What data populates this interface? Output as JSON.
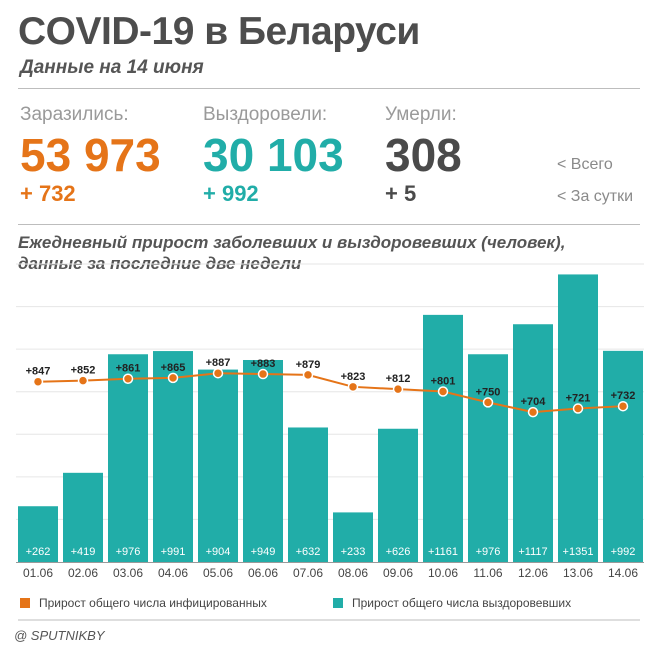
{
  "header": {
    "title": "COVID-19 в Беларуси",
    "subtitle": "Данные на 14 июня"
  },
  "stats": [
    {
      "label": "Заразились:",
      "total": "53 973",
      "delta": "+ 732",
      "color": "#e57418"
    },
    {
      "label": "Выздоровели:",
      "total": "30 103",
      "delta": "+ 992",
      "color": "#21ada8"
    },
    {
      "label": "Умерли:",
      "total": "308",
      "delta": "+ 5",
      "color": "#4a4a4a"
    }
  ],
  "side_legend": {
    "total": "<  Всего",
    "daily": "<  За сутки"
  },
  "chart_title": {
    "line1": "Ежедневный прирост заболевших и выздоровевших (человек),",
    "line2": "данные за последние две недели"
  },
  "chart_data": {
    "type": "bar",
    "categories": [
      "01.06",
      "02.06",
      "03.06",
      "04.06",
      "05.06",
      "06.06",
      "07.06",
      "08.06",
      "09.06",
      "10.06",
      "11.06",
      "12.06",
      "13.06",
      "14.06"
    ],
    "series": [
      {
        "name": "Прирост общего числа выздоровевших",
        "type": "bar",
        "color": "#21ada8",
        "values": [
          262,
          419,
          976,
          991,
          904,
          949,
          632,
          233,
          626,
          1161,
          976,
          1117,
          1351,
          992
        ],
        "labels": [
          "+262",
          "+419",
          "+976",
          "+991",
          "+904",
          "+949",
          "+632",
          "+233",
          "+626",
          "+1161",
          "+976",
          "+1117",
          "+1351",
          "+992"
        ]
      },
      {
        "name": "Прирост общего числа инфицированных",
        "type": "line",
        "color": "#e57418",
        "values": [
          847,
          852,
          861,
          865,
          887,
          883,
          879,
          823,
          812,
          801,
          750,
          704,
          721,
          732
        ],
        "labels": [
          "+847",
          "+852",
          "+861",
          "+865",
          "+887",
          "+883",
          "+879",
          "+823",
          "+812",
          "+801",
          "+750",
          "+704",
          "+721",
          "+732"
        ]
      }
    ],
    "ylim": [
      0,
      1400
    ],
    "grid": true,
    "legend": "bottom"
  },
  "legend": [
    {
      "label": "Прирост общего числа инфицированных",
      "color": "#e57418"
    },
    {
      "label": "Прирост общего числа выздоровевших",
      "color": "#21ada8"
    }
  ],
  "credit": "@ SPUTNIKBY"
}
